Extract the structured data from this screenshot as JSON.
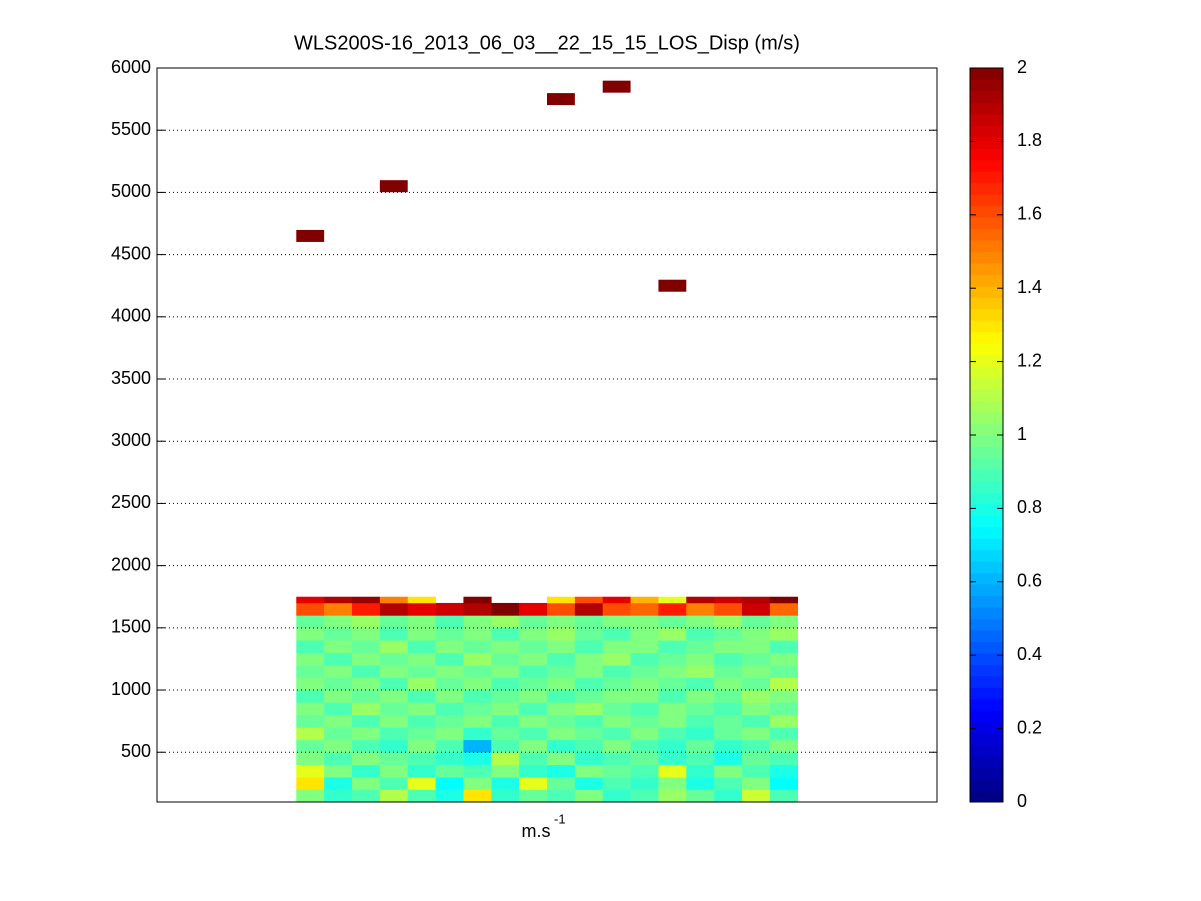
{
  "chart_data": {
    "type": "heatmap",
    "title": "WLS200S-16_2013_06_03__22_15_15_LOS_Disp (m/s)",
    "x_label": "m.s",
    "x_label_superscript": "-1",
    "xlim": [
      0,
      28
    ],
    "ylim": [
      100,
      6000
    ],
    "yticks": [
      500,
      1000,
      1500,
      2000,
      2500,
      3000,
      3500,
      4000,
      4500,
      5000,
      5500,
      6000
    ],
    "grid": true,
    "colormap": "jet",
    "clim": [
      0,
      2
    ],
    "cticks": [
      0,
      0.2,
      0.4,
      0.6,
      0.8,
      1,
      1.2,
      1.4,
      1.6,
      1.8,
      2
    ],
    "x": [
      5.5,
      6.5,
      7.5,
      8.5,
      9.5,
      10.5,
      11.5,
      12.5,
      13.5,
      14.5,
      15.5,
      16.5,
      17.5,
      18.5,
      19.5,
      20.5,
      21.5,
      22.5
    ],
    "y_edges": [
      100,
      200,
      300,
      400,
      500,
      600,
      700,
      800,
      900,
      1000,
      1100,
      1200,
      1300,
      1400,
      1500,
      1600,
      1700,
      1750
    ],
    "z": [
      [
        1.0,
        0.85,
        0.9,
        1.1,
        0.9,
        0.8,
        1.3,
        0.85,
        0.95,
        0.9,
        1.0,
        0.85,
        0.9,
        1.05,
        0.95,
        0.85,
        1.15,
        0.9
      ],
      [
        1.3,
        0.8,
        1.0,
        0.9,
        1.2,
        0.75,
        1.0,
        0.8,
        1.2,
        0.95,
        0.8,
        0.9,
        0.85,
        1.0,
        0.8,
        0.9,
        1.0,
        0.75
      ],
      [
        1.2,
        1.0,
        0.85,
        1.0,
        0.85,
        0.95,
        0.9,
        1.0,
        0.85,
        0.8,
        1.0,
        0.95,
        0.9,
        1.2,
        0.85,
        1.0,
        0.9,
        0.8
      ],
      [
        1.0,
        0.9,
        1.0,
        0.95,
        0.9,
        0.85,
        0.8,
        1.1,
        0.9,
        1.0,
        0.85,
        0.9,
        0.95,
        0.85,
        0.9,
        0.8,
        0.95,
        0.9
      ],
      [
        0.95,
        1.0,
        0.9,
        0.85,
        1.0,
        0.9,
        0.6,
        0.9,
        1.0,
        0.85,
        0.9,
        1.0,
        0.9,
        0.85,
        0.95,
        0.85,
        0.9,
        1.0
      ],
      [
        1.1,
        0.95,
        1.0,
        0.9,
        0.95,
        1.0,
        0.85,
        0.95,
        0.9,
        1.0,
        0.95,
        0.9,
        1.0,
        0.9,
        0.85,
        0.95,
        1.0,
        0.9
      ],
      [
        0.95,
        1.0,
        0.9,
        1.0,
        0.9,
        0.95,
        1.0,
        0.9,
        1.0,
        0.95,
        0.9,
        1.0,
        0.95,
        1.0,
        0.9,
        0.95,
        0.9,
        1.05
      ],
      [
        1.0,
        0.9,
        1.05,
        0.95,
        1.0,
        0.9,
        0.95,
        1.0,
        0.9,
        1.0,
        1.05,
        0.95,
        0.9,
        1.0,
        0.95,
        0.9,
        1.0,
        0.95
      ],
      [
        0.9,
        1.0,
        0.95,
        1.0,
        0.9,
        1.0,
        0.9,
        0.95,
        1.0,
        0.9,
        0.95,
        1.0,
        1.0,
        0.9,
        1.0,
        0.95,
        1.05,
        1.0
      ],
      [
        1.0,
        0.95,
        1.0,
        0.9,
        1.05,
        0.95,
        1.0,
        0.9,
        0.95,
        1.0,
        0.9,
        0.95,
        1.0,
        0.95,
        0.9,
        1.0,
        0.95,
        1.1
      ],
      [
        0.95,
        1.0,
        0.9,
        1.0,
        0.95,
        1.0,
        0.95,
        1.0,
        0.9,
        0.95,
        1.0,
        0.9,
        0.95,
        1.0,
        1.05,
        0.95,
        1.0,
        0.95
      ],
      [
        1.0,
        0.9,
        1.0,
        0.95,
        1.0,
        0.9,
        1.05,
        0.95,
        1.0,
        0.9,
        1.0,
        1.05,
        0.9,
        0.95,
        1.0,
        0.9,
        0.95,
        1.0
      ],
      [
        0.9,
        1.0,
        0.95,
        1.05,
        0.9,
        1.0,
        0.95,
        1.0,
        0.95,
        1.0,
        0.9,
        1.0,
        1.0,
        0.9,
        0.95,
        1.0,
        1.0,
        0.9
      ],
      [
        1.0,
        0.95,
        1.0,
        0.9,
        1.0,
        0.95,
        1.0,
        0.9,
        1.0,
        1.05,
        0.95,
        0.9,
        1.0,
        1.05,
        0.9,
        0.95,
        1.0,
        1.05
      ],
      [
        0.95,
        1.0,
        1.05,
        0.95,
        1.0,
        0.9,
        1.0,
        1.05,
        0.95,
        1.0,
        0.95,
        1.0,
        1.0,
        0.95,
        1.0,
        1.05,
        0.95,
        1.0
      ],
      [
        1.6,
        1.5,
        1.7,
        1.9,
        1.8,
        1.85,
        1.9,
        2.0,
        1.8,
        1.6,
        1.9,
        1.6,
        1.55,
        1.7,
        1.5,
        1.6,
        1.85,
        1.55
      ],
      [
        1.8,
        1.9,
        1.95,
        1.5,
        1.3,
        null,
        2.0,
        null,
        null,
        1.3,
        1.6,
        1.8,
        1.4,
        1.2,
        1.9,
        1.85,
        1.9,
        2.0
      ]
    ],
    "points": [
      {
        "x": 5.5,
        "y": 4650,
        "value": 2
      },
      {
        "x": 8.5,
        "y": 5050,
        "value": 2
      },
      {
        "x": 14.5,
        "y": 5750,
        "value": 2
      },
      {
        "x": 16.5,
        "y": 5850,
        "value": 2
      },
      {
        "x": 18.5,
        "y": 4250,
        "value": 2
      }
    ]
  }
}
